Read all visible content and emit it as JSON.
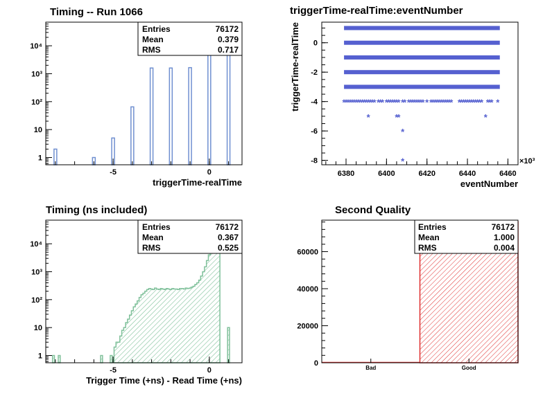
{
  "chart_data": [
    {
      "id": "timing_run",
      "type": "bar",
      "title": "Timing -- Run 1066",
      "xlabel": "triggerTime-realTime",
      "ylabel": "",
      "yscale": "log",
      "xlim": [
        -8.5,
        1.7
      ],
      "ylim": [
        0.55,
        70000
      ],
      "x_ticks": [
        -5,
        0
      ],
      "y_ticks": [
        {
          "v": 1,
          "label": "1"
        },
        {
          "v": 10,
          "label": "10"
        },
        {
          "v": 100,
          "label": "10²"
        },
        {
          "v": 1000,
          "label": "10³"
        },
        {
          "v": 10000,
          "label": "10⁴"
        }
      ],
      "x": [
        -8,
        -6,
        -5,
        -4,
        -3,
        -2,
        -1,
        0,
        1
      ],
      "values": [
        2,
        1,
        5,
        65,
        1600,
        1600,
        1650,
        40000,
        35000
      ],
      "color": "#6f8fd0",
      "stats": {
        "entries_label": "Entries",
        "entries": "76172",
        "mean_label": "Mean",
        "mean": "0.379",
        "rms_label": "RMS",
        "rms": "0.717"
      }
    },
    {
      "id": "trigger_vs_event",
      "type": "scatter",
      "title": "triggerTime-realTime:eventNumber",
      "xlabel": "eventNumber",
      "ylabel": "triggerTime-realTime",
      "x_multiplier": "×10³",
      "xlim": [
        6368,
        6465
      ],
      "ylim": [
        -8.3,
        1.4
      ],
      "x_ticks": [
        6380,
        6400,
        6420,
        6440,
        6460
      ],
      "y_ticks": [
        -8,
        -6,
        -4,
        -2,
        0
      ],
      "bands": [
        {
          "y": 1,
          "x_from": 6379,
          "x_to": 6456
        },
        {
          "y": 0,
          "x_from": 6379,
          "x_to": 6456
        },
        {
          "y": -1,
          "x_from": 6379,
          "x_to": 6456
        },
        {
          "y": -2,
          "x_from": 6379,
          "x_to": 6456
        },
        {
          "y": -3,
          "x_from": 6379,
          "x_to": 6456
        }
      ],
      "points": [
        {
          "y": -4,
          "x": [
            6379,
            6380,
            6381,
            6382,
            6383,
            6384,
            6385,
            6386,
            6387,
            6388,
            6389,
            6390,
            6391,
            6392,
            6393,
            6394,
            6396,
            6397,
            6398,
            6400,
            6401,
            6402,
            6403,
            6404,
            6405,
            6406,
            6408,
            6409,
            6411,
            6412,
            6413,
            6414,
            6415,
            6416,
            6417,
            6418,
            6420,
            6422,
            6423,
            6424,
            6425,
            6426,
            6427,
            6428,
            6429,
            6430,
            6431,
            6432,
            6436,
            6437,
            6438,
            6439,
            6440,
            6441,
            6442,
            6443,
            6444,
            6445,
            6446,
            6447,
            6450,
            6451,
            6452,
            6455
          ]
        },
        {
          "y": -5,
          "x": [
            6391,
            6405,
            6406,
            6449
          ]
        },
        {
          "y": -6,
          "x": [
            6408
          ]
        },
        {
          "y": -8,
          "x": [
            6408
          ]
        }
      ],
      "color": "#5560d0"
    },
    {
      "id": "timing_ns",
      "type": "area",
      "title": "Timing (ns included)",
      "xlabel": "Trigger Time (+ns) - Read Time (+ns)",
      "ylabel": "",
      "yscale": "log",
      "xlim": [
        -8.5,
        1.7
      ],
      "ylim": [
        0.55,
        70000
      ],
      "x_ticks": [
        -5,
        0
      ],
      "y_ticks": [
        {
          "v": 1,
          "label": "1"
        },
        {
          "v": 10,
          "label": "10"
        },
        {
          "v": 100,
          "label": "10²"
        },
        {
          "v": 1000,
          "label": "10³"
        },
        {
          "v": 10000,
          "label": "10⁴"
        }
      ],
      "bin_width": 0.1,
      "x": [
        -8.1,
        -7.8,
        -5.6,
        -5.1,
        -4.9,
        -4.8,
        -4.7,
        -4.6,
        -4.5,
        -4.4,
        -4.3,
        -4.2,
        -4.1,
        -4.0,
        -3.9,
        -3.8,
        -3.7,
        -3.6,
        -3.5,
        -3.4,
        -3.3,
        -3.2,
        -3.1,
        -3.0,
        -2.9,
        -2.8,
        -2.7,
        -2.6,
        -2.5,
        -2.4,
        -2.3,
        -2.2,
        -2.1,
        -2.0,
        -1.9,
        -1.8,
        -1.7,
        -1.6,
        -1.5,
        -1.4,
        -1.3,
        -1.2,
        -1.1,
        -1.0,
        -0.9,
        -0.8,
        -0.7,
        -0.6,
        -0.5,
        -0.4,
        -0.3,
        -0.2,
        -0.1,
        0.0,
        0.1,
        0.2,
        0.3,
        0.4,
        0.5,
        1.0
      ],
      "values": [
        1,
        1,
        1,
        1,
        2,
        3,
        3,
        5,
        8,
        10,
        15,
        20,
        28,
        40,
        55,
        70,
        90,
        120,
        150,
        170,
        200,
        230,
        250,
        240,
        230,
        260,
        240,
        230,
        250,
        240,
        230,
        250,
        240,
        230,
        250,
        240,
        240,
        230,
        250,
        250,
        240,
        260,
        250,
        260,
        280,
        300,
        350,
        400,
        500,
        700,
        1000,
        1500,
        2500,
        4000,
        8000,
        20000,
        40000,
        60000,
        40000,
        10
      ],
      "color": "#7fc09a",
      "stats": {
        "entries_label": "Entries",
        "entries": "76172",
        "mean_label": "Mean",
        "mean": "0.367",
        "rms_label": "RMS",
        "rms": "0.525"
      }
    },
    {
      "id": "second_quality",
      "type": "bar",
      "title": "Second Quality",
      "xlabel": "",
      "ylabel": "",
      "categories": [
        "Bad",
        "Good"
      ],
      "values": [
        0,
        76172
      ],
      "ylim": [
        0,
        77000
      ],
      "y_ticks": [
        0,
        20000,
        40000,
        60000
      ],
      "color": "#e03030",
      "stats": {
        "entries_label": "Entries",
        "entries": "76172",
        "mean_label": "Mean",
        "mean": "1.000",
        "rms_label": "RMS",
        "rms": "0.004"
      }
    }
  ]
}
